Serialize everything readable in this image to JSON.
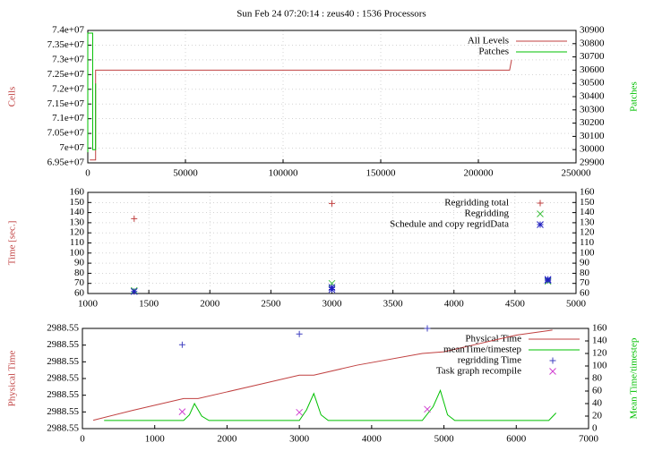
{
  "title": "Sun Feb 24 07:20:14 : zeus40 : 1536 Processors",
  "chart_data": [
    {
      "type": "line",
      "ylabel": "Cells",
      "y2label": "Patches",
      "grid": true,
      "xlim": [
        0,
        250000
      ],
      "xticks": [
        0,
        50000,
        100000,
        150000,
        200000,
        250000
      ],
      "ylim": [
        69500000,
        74000000
      ],
      "yticks": [
        {
          "value": 69500000,
          "label": "6.95e+07"
        },
        {
          "value": 70000000,
          "label": "7e+07"
        },
        {
          "value": 70500000,
          "label": "7.05e+07"
        },
        {
          "value": 71000000,
          "label": "7.1e+07"
        },
        {
          "value": 71500000,
          "label": "7.15e+07"
        },
        {
          "value": 72000000,
          "label": "7.2e+07"
        },
        {
          "value": 72500000,
          "label": "7.25e+07"
        },
        {
          "value": 73000000,
          "label": "7.3e+07"
        },
        {
          "value": 73500000,
          "label": "7.35e+07"
        },
        {
          "value": 74000000,
          "label": "7.4e+07"
        }
      ],
      "y2lim": [
        29900,
        30900
      ],
      "y2ticks": [
        29900,
        30000,
        30100,
        30200,
        30300,
        30400,
        30500,
        30600,
        30700,
        30800,
        30900
      ],
      "series": [
        {
          "name": "All Levels",
          "color": "#c04040",
          "style": "line",
          "x": [
            1000,
            4000,
            4000,
            216000,
            217000
          ],
          "values": [
            69600000,
            69600000,
            72650000,
            72650000,
            73000000
          ]
        },
        {
          "name": "Patches",
          "color": "#00c000",
          "style": "line",
          "axis": "y2",
          "x": [
            0,
            0,
            2500,
            2500,
            4000,
            4000
          ],
          "values": [
            29980,
            30880,
            30880,
            30000,
            30000,
            30500
          ]
        }
      ]
    },
    {
      "type": "scatter",
      "ylabel": "Time [sec.]",
      "grid": true,
      "xlim": [
        1000,
        5000
      ],
      "xticks": [
        1000,
        1500,
        2000,
        2500,
        3000,
        3500,
        4000,
        4500,
        5000
      ],
      "ylim": [
        60,
        160
      ],
      "yticks": [
        60,
        70,
        80,
        90,
        100,
        110,
        120,
        130,
        140,
        150,
        160
      ],
      "y2lim": [
        60,
        160
      ],
      "y2ticks": [
        60,
        70,
        80,
        90,
        100,
        110,
        120,
        130,
        140,
        150,
        160
      ],
      "series": [
        {
          "name": "Regridding total",
          "color": "#c04040",
          "style": "points",
          "marker": "+",
          "x": [
            1380,
            3000
          ],
          "values": [
            134,
            149
          ]
        },
        {
          "name": "Regridding",
          "color": "#40c040",
          "style": "points",
          "marker": "x",
          "x": [
            1380,
            3000,
            4770
          ],
          "values": [
            63,
            70,
            72
          ]
        },
        {
          "name": "Schedule and copy regridData",
          "color": "#2020c0",
          "style": "points",
          "marker": "*",
          "x": [
            1380,
            3000,
            3000,
            4770,
            4770
          ],
          "values": [
            62,
            64,
            66,
            73,
            74
          ]
        }
      ]
    },
    {
      "type": "line",
      "ylabel": "Physical Time",
      "y2label": "Mean Time/timestep",
      "grid": false,
      "xlim": [
        0,
        7000
      ],
      "xticks": [
        0,
        1000,
        2000,
        3000,
        4000,
        5000,
        6000,
        7000
      ],
      "ylim": [
        2988.546,
        2988.552
      ],
      "yticks": [
        {
          "value": 2988.546,
          "label": "2988.55"
        },
        {
          "value": 2988.547,
          "label": "2988.55"
        },
        {
          "value": 2988.548,
          "label": "2988.55"
        },
        {
          "value": 2988.549,
          "label": "2988.55"
        },
        {
          "value": 2988.55,
          "label": "2988.55"
        },
        {
          "value": 2988.551,
          "label": "2988.55"
        },
        {
          "value": 2988.552,
          "label": "2988.55"
        }
      ],
      "y2lim": [
        0,
        160
      ],
      "y2ticks": [
        0,
        20,
        40,
        60,
        80,
        100,
        120,
        140,
        160
      ],
      "series": [
        {
          "name": "Physical Time",
          "color": "#c04040",
          "style": "line",
          "x": [
            150,
            700,
            1400,
            1600,
            2000,
            2500,
            3000,
            3200,
            3800,
            4700,
            5000,
            5500,
            6000,
            6500
          ],
          "values": [
            2988.5465,
            2988.5471,
            2988.5478,
            2988.5478,
            2988.5482,
            2988.5487,
            2988.5492,
            2988.5492,
            2988.5498,
            2988.5505,
            2988.5506,
            2988.5511,
            2988.5516,
            2988.5519
          ]
        },
        {
          "name": "meanTime/timestep",
          "color": "#00c000",
          "style": "line",
          "axis": "y2",
          "x": [
            300,
            1400,
            1480,
            1550,
            1650,
            1750,
            3000,
            3100,
            3200,
            3300,
            3400,
            4700,
            4850,
            4950,
            5050,
            5150,
            6450,
            6550
          ],
          "values": [
            13,
            13,
            22,
            40,
            20,
            13,
            13,
            30,
            56,
            22,
            13,
            13,
            35,
            61,
            22,
            13,
            13,
            25
          ]
        },
        {
          "name": "regridding Time",
          "color": "#4040c0",
          "style": "points",
          "marker": "+",
          "axis": "y2",
          "x": [
            1380,
            3000,
            4770
          ],
          "values": [
            134,
            151,
            160
          ]
        },
        {
          "name": "Task graph recompile",
          "color": "#d040d0",
          "style": "points",
          "marker": "x",
          "axis": "y2",
          "x": [
            1380,
            3000,
            4770
          ],
          "values": [
            27,
            26,
            31
          ]
        }
      ]
    }
  ]
}
